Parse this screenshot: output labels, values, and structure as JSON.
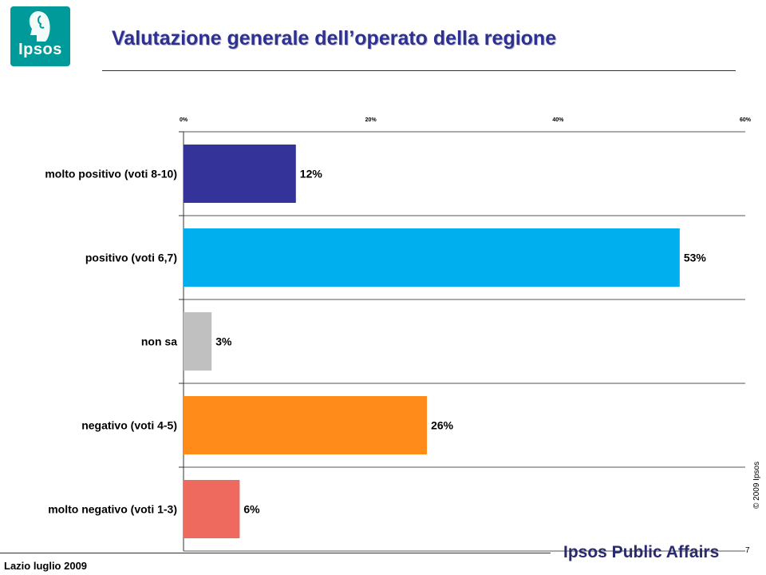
{
  "logo": {
    "text": "Ipsos"
  },
  "title": "Valutazione generale dell’operato della regione",
  "chart_data": {
    "type": "bar",
    "orientation": "horizontal",
    "categories": [
      "molto positivo (voti 8-10)",
      "positivo (voti 6,7)",
      "non sa",
      "negativo (voti 4-5)",
      "molto negativo (voti 1-3)"
    ],
    "values": [
      12,
      53,
      3,
      26,
      6
    ],
    "value_labels": [
      "12%",
      "53%",
      "3%",
      "26%",
      "6%"
    ],
    "colors": [
      "#333399",
      "#00b0ee",
      "#c0c0c0",
      "#ff8c1a",
      "#ee6a5e"
    ],
    "xlim": [
      0,
      60
    ],
    "ticks": [
      0,
      20,
      40,
      60
    ],
    "tick_labels": [
      "0%",
      "20%",
      "40%",
      "60%"
    ],
    "grid": true
  },
  "copyright": "© 2009 Ipsos",
  "footer": {
    "left": "Lazio luglio 2009",
    "brand": "Ipsos Public Affairs",
    "page": "7"
  }
}
